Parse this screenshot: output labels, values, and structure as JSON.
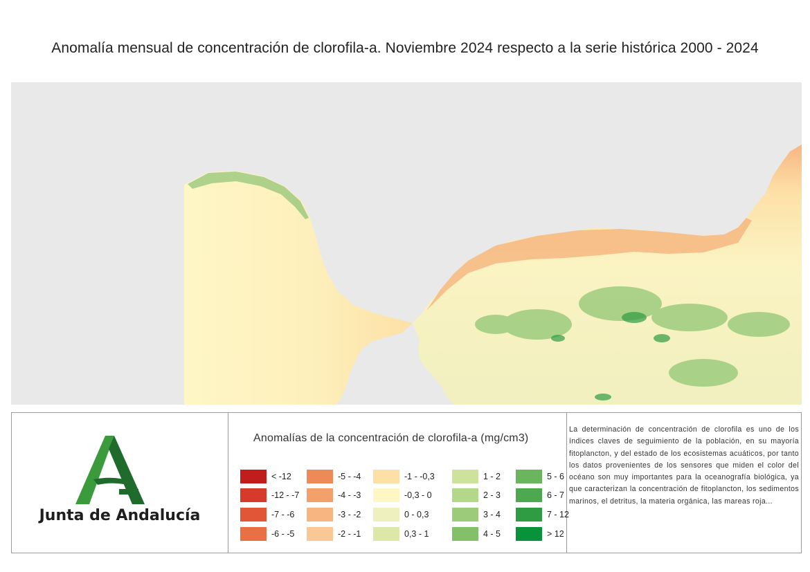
{
  "title": "Anomalía mensual de concentración de clorofila-a. Noviembre 2024 respecto a la serie histórica 2000 - 2024",
  "map": {
    "land_color": "#e9e9e9",
    "description": ""
  },
  "logo": {
    "text": "Junta de Andalucía",
    "colors": {
      "light_green": "#3a9a3c",
      "dark_green": "#1f6b2c"
    }
  },
  "legend": {
    "title": "Anomalías de la concentración de clorofila-a (mg/cm3)",
    "columns": [
      [
        {
          "label": "< -12",
          "color": "#c21d1d"
        },
        {
          "label": "-12 - -7",
          "color": "#d53a2a"
        },
        {
          "label": "-7 - -6",
          "color": "#e05636"
        },
        {
          "label": "-6 - -5",
          "color": "#e96f45"
        }
      ],
      [
        {
          "label": "-5 - -4",
          "color": "#ee8a57"
        },
        {
          "label": "-4 - -3",
          "color": "#f3a06b"
        },
        {
          "label": "-3 - -2",
          "color": "#f7b582"
        },
        {
          "label": "-2 - -1",
          "color": "#fac894"
        }
      ],
      [
        {
          "label": "-1 - -0,3",
          "color": "#fde0a6"
        },
        {
          "label": "-0,3 - 0",
          "color": "#fff6c6"
        },
        {
          "label": "0 - 0,3",
          "color": "#eef1be"
        },
        {
          "label": "0,3 - 1",
          "color": "#dde8a8"
        }
      ],
      [
        {
          "label": "1 - 2",
          "color": "#cde29c"
        },
        {
          "label": "2 - 3",
          "color": "#b4d88a"
        },
        {
          "label": "3 - 4",
          "color": "#9ccc7a"
        },
        {
          "label": "4 - 5",
          "color": "#83c06a"
        }
      ],
      [
        {
          "label": "5 - 6",
          "color": "#6bb55e"
        },
        {
          "label": "6 - 7",
          "color": "#4ea850"
        },
        {
          "label": "7 - 12",
          "color": "#2f9c44"
        },
        {
          "label": "> 12",
          "color": "#08923a"
        }
      ]
    ]
  },
  "description": "La determinación de concentración de clorofila es uno de los índices claves de seguimiento de la población, en su mayoría fitoplancton, y del estado de los ecosistemas acuáticos, por tanto los datos provenientes de los sensores que miden el color del océano son muy importantes para la oceanografía biológica, ya que caracterizan la concentración de fitoplancton, los sedimentos marinos, el detritus, la materia orgánica, las mareas roja..."
}
